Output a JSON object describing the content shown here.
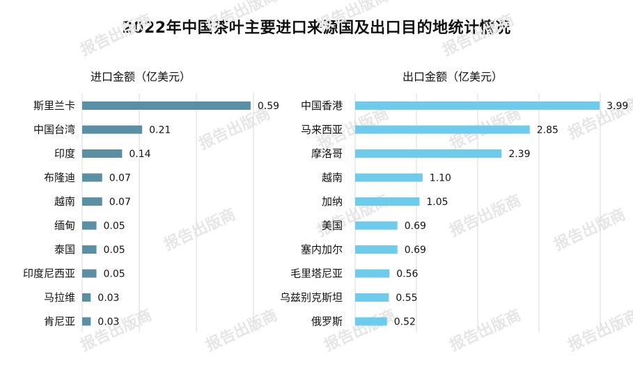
{
  "title": "2022年中国茶叶主要进口来源国及出口目的地统计情况",
  "watermark_text": "报告出版商",
  "colors": {
    "import_bar": "#5b8fa3",
    "export_bar": "#6fcbec",
    "grid": "#d9d9d9"
  },
  "chart_data": [
    {
      "type": "bar",
      "orientation": "horizontal",
      "subtitle": "进口金额（亿美元）",
      "categories": [
        "斯里兰卡",
        "中国台湾",
        "印度",
        "布隆迪",
        "越南",
        "缅甸",
        "泰国",
        "印度尼西亚",
        "马拉维",
        "肯尼亚"
      ],
      "values": [
        0.59,
        0.21,
        0.14,
        0.07,
        0.07,
        0.05,
        0.05,
        0.05,
        0.03,
        0.03
      ],
      "value_labels": [
        "0.59",
        "0.21",
        "0.14",
        "0.07",
        "0.07",
        "0.05",
        "0.05",
        "0.05",
        "0.03",
        "0.03"
      ],
      "xlim": [
        0,
        0.6
      ],
      "grid": true
    },
    {
      "type": "bar",
      "orientation": "horizontal",
      "subtitle": "出口金额（亿美元）",
      "categories": [
        "中国香港",
        "马来西亚",
        "摩洛哥",
        "越南",
        "加纳",
        "美国",
        "塞内加尔",
        "毛里塔尼亚",
        "乌兹别克斯坦",
        "俄罗斯"
      ],
      "values": [
        3.99,
        2.85,
        2.39,
        1.1,
        1.05,
        0.69,
        0.69,
        0.56,
        0.55,
        0.52
      ],
      "value_labels": [
        "3.99",
        "2.85",
        "2.39",
        "1.10",
        "1.05",
        "0.69",
        "0.69",
        "0.56",
        "0.55",
        "0.52"
      ],
      "xlim": [
        0,
        4
      ],
      "grid": true
    }
  ]
}
